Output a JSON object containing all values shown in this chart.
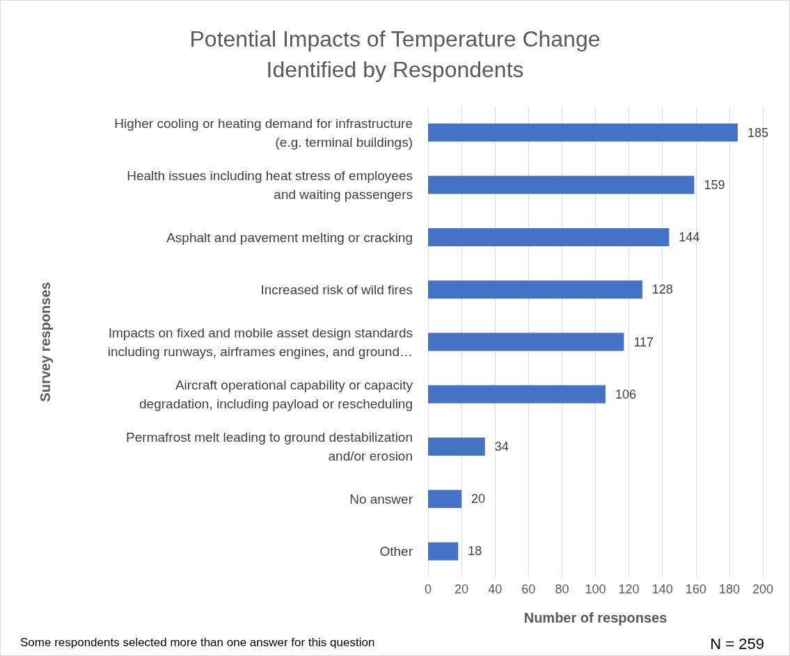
{
  "chart_data": {
    "type": "bar",
    "orientation": "horizontal",
    "title": "Potential Impacts of Temperature Change\nIdentified by Respondents",
    "categories": [
      "Higher cooling or heating demand for infrastructure\n(e.g. terminal buildings)",
      "Health issues including heat stress of employees\nand waiting passengers",
      "Asphalt and pavement melting or cracking",
      "Increased risk of wild fires",
      "Impacts on fixed and mobile asset design standards\nincluding runways, airframes engines, and ground…",
      "Aircraft operational capability or capacity\ndegradation, including payload or rescheduling",
      "Permafrost melt leading to ground destabilization\nand/or erosion",
      "No answer",
      "Other"
    ],
    "values": [
      185,
      159,
      144,
      128,
      117,
      106,
      34,
      20,
      18
    ],
    "color": "#4472c4",
    "data_labels": true,
    "xlim": [
      0,
      200
    ],
    "xticks": [
      0,
      20,
      40,
      60,
      80,
      100,
      120,
      140,
      160,
      180,
      200
    ],
    "grid": "x",
    "xlabel": "Number of responses",
    "ylabel": "Survey responses",
    "annotations": [
      "Some respondents selected more than one answer for this question",
      "N = 259"
    ]
  }
}
